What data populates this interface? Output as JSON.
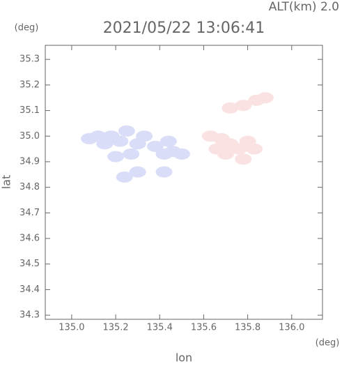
{
  "chart_data": {
    "type": "scatter",
    "title": "2021/05/22 13:06:41",
    "subtitle": "ALT(km) 2.0",
    "y_unit": "(deg)",
    "x_unit": "(deg)",
    "x_label": "lon",
    "y_label": "lat",
    "xlim": [
      134.88,
      136.14
    ],
    "ylim": [
      34.284,
      35.355
    ],
    "xticks": [
      {
        "value": 135.0,
        "label": "135.0"
      },
      135.2,
      135.4,
      135.6,
      135.8,
      {
        "value": 136.0,
        "label": "136.0"
      }
    ],
    "yticks": [
      34.3,
      34.4,
      34.5,
      34.6,
      34.7,
      34.8,
      34.9,
      {
        "value": 35.0,
        "label": "35.0"
      },
      35.1,
      35.2,
      35.3
    ],
    "series": [
      {
        "color": "#d9ddf8",
        "x": [
          135.08,
          135.12,
          135.15,
          135.18,
          135.22,
          135.25,
          135.3,
          135.33,
          135.2,
          135.27,
          135.38,
          135.42,
          135.46,
          135.5,
          135.44,
          135.42,
          135.3,
          135.24
        ],
        "values": [
          34.99,
          35.0,
          34.97,
          35.0,
          34.98,
          35.02,
          34.97,
          35.0,
          34.92,
          34.93,
          34.96,
          34.93,
          34.94,
          34.93,
          34.98,
          34.86,
          34.86,
          34.84
        ]
      },
      {
        "color": "#fbe2e2",
        "x": [
          135.63,
          135.68,
          135.72,
          135.76,
          135.8,
          135.7,
          135.78,
          135.66,
          135.83,
          135.72,
          135.78,
          135.84,
          135.88
        ],
        "values": [
          35.0,
          34.99,
          34.97,
          34.95,
          34.98,
          34.93,
          34.91,
          34.95,
          34.95,
          35.11,
          35.12,
          35.14,
          35.15
        ]
      }
    ]
  }
}
